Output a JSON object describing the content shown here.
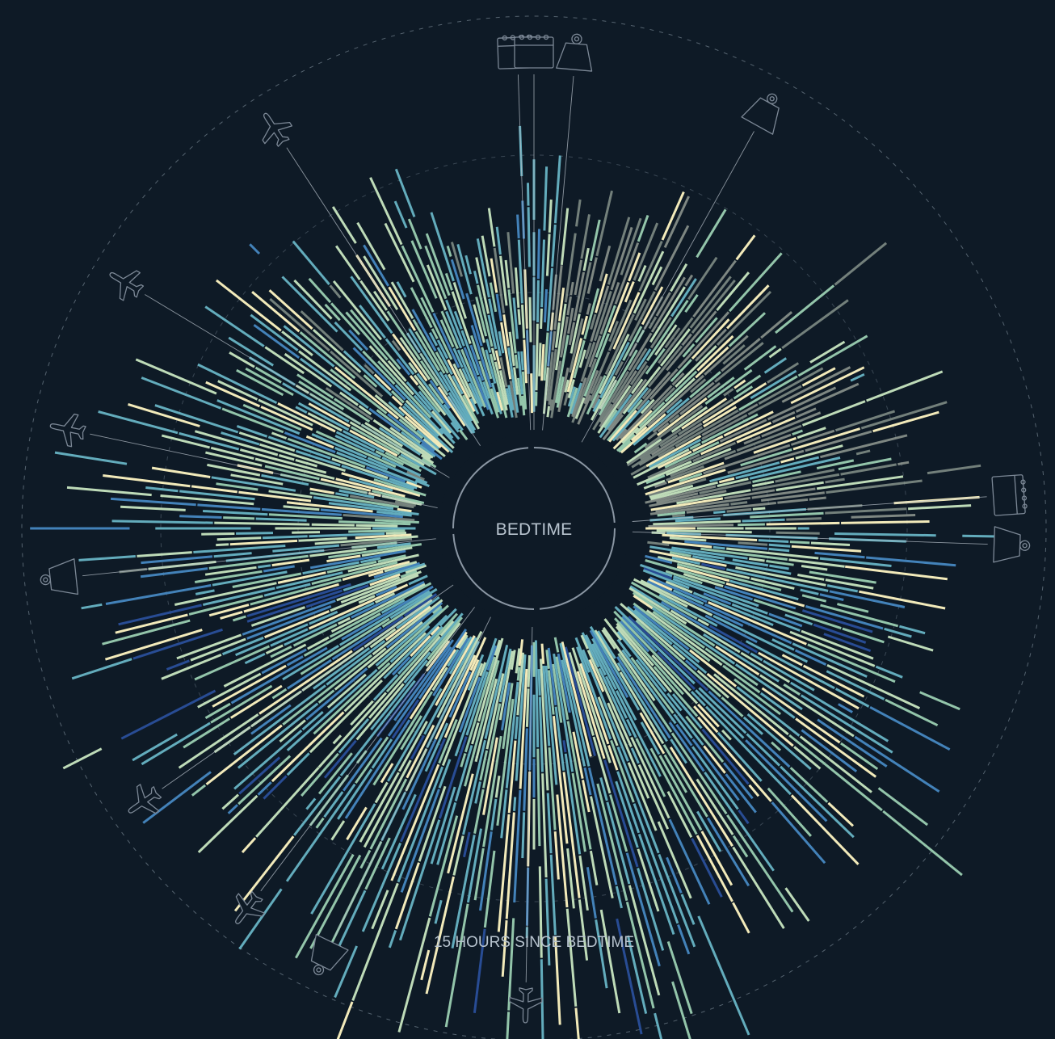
{
  "chart_data": {
    "type": "radial-bar",
    "center_label": "BEDTIME",
    "ring_label": "15 HOURS SINCE BEDTIME",
    "rings_hours": [
      5,
      10,
      15
    ],
    "max_hours": 17,
    "sleep_colors": [
      "#fff6c2",
      "#c8e6c0",
      "#9bcfb2",
      "#68b4c5",
      "#4688c1",
      "#2a4f9a",
      "#8d9a91",
      "#9aa39a"
    ],
    "bars_per_night": 4,
    "nights": 360,
    "events": [
      {
        "type": "calendar",
        "night": 358
      },
      {
        "type": "calendar",
        "night": 0
      },
      {
        "type": "weight",
        "night": 5
      },
      {
        "type": "weight",
        "night": 29
      },
      {
        "type": "calendar",
        "night": 86
      },
      {
        "type": "weight",
        "night": 92
      },
      {
        "type": "plane",
        "night": 181
      },
      {
        "type": "weight",
        "night": 206
      },
      {
        "type": "plane",
        "night": 217
      },
      {
        "type": "plane",
        "night": 235
      },
      {
        "type": "weight",
        "night": 264
      },
      {
        "type": "plane",
        "night": 282
      },
      {
        "type": "plane",
        "night": 301
      },
      {
        "type": "plane",
        "night": 327
      }
    ]
  }
}
